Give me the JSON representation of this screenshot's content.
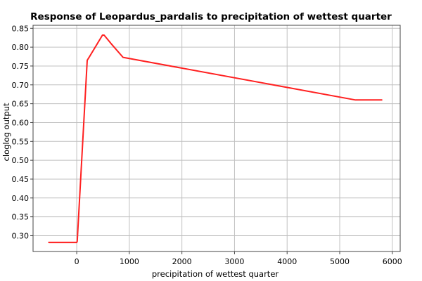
{
  "chart_data": {
    "type": "line",
    "title": "Response of Leopardus_pardalis to precipitation of wettest quarter",
    "xlabel": "precipitation of wettest quarter",
    "ylabel": "cloglog output",
    "xlim": [
      -830,
      6150
    ],
    "ylim": [
      0.258,
      0.858
    ],
    "x_ticks": [
      0,
      1000,
      2000,
      3000,
      4000,
      5000,
      6000
    ],
    "y_ticks": [
      0.3,
      0.35,
      0.4,
      0.45,
      0.5,
      0.55,
      0.6,
      0.65,
      0.7,
      0.75,
      0.8,
      0.85
    ],
    "grid": true,
    "series": [
      {
        "color": "#ff2020",
        "x": [
          -530,
          0,
          10,
          200,
          230,
          490,
          520,
          650,
          880,
          5300,
          5800
        ],
        "y": [
          0.282,
          0.282,
          0.285,
          0.765,
          0.772,
          0.832,
          0.832,
          0.81,
          0.773,
          0.66,
          0.66
        ]
      }
    ]
  }
}
